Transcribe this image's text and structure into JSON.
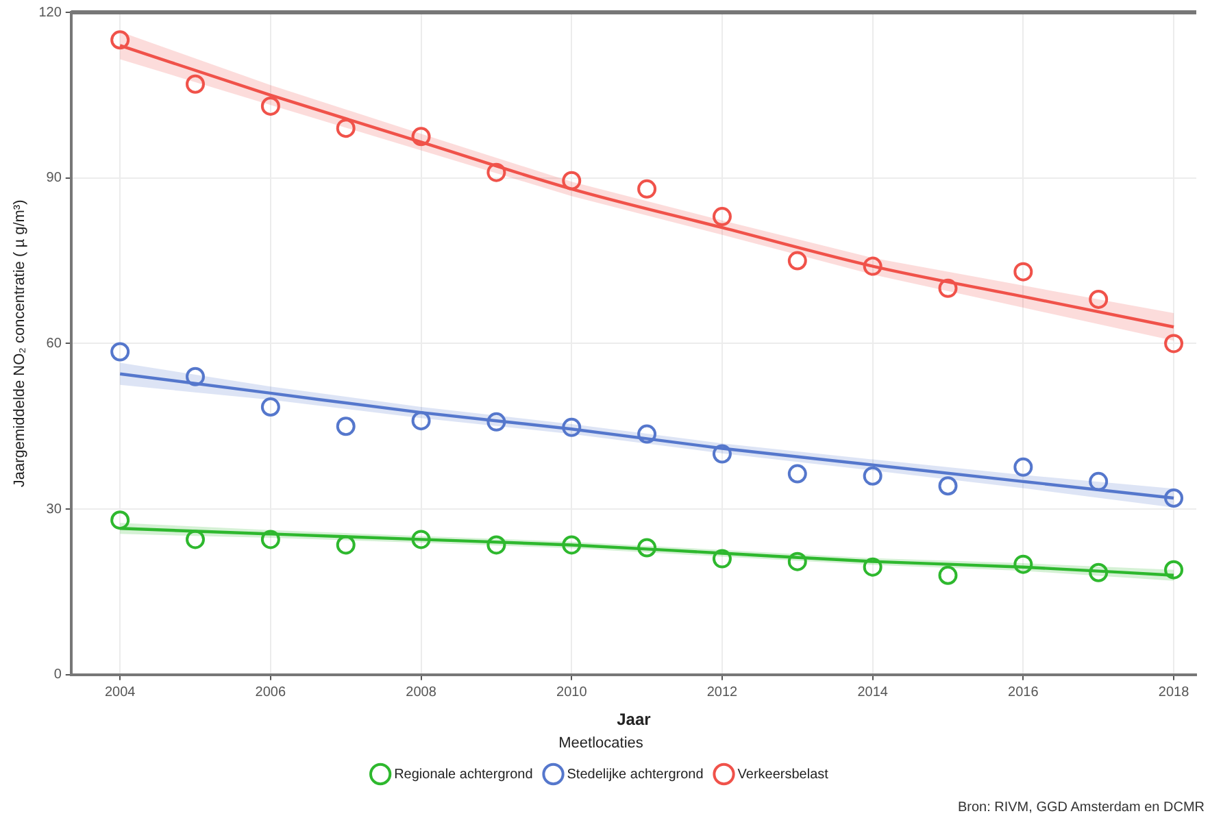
{
  "chart_data": {
    "type": "scatter",
    "xlabel": "Jaar",
    "ylabel": "Jaargemiddelde NO₂ concentratie ( µ g/m³)",
    "legend_title": "Meetlocaties",
    "legend": "bottom",
    "grid": true,
    "marker": "circle",
    "x": [
      2004,
      2005,
      2006,
      2007,
      2008,
      2009,
      2010,
      2011,
      2012,
      2013,
      2014,
      2015,
      2016,
      2017,
      2018
    ],
    "xlim": [
      2003.35,
      2018.3
    ],
    "xticks": [
      2004,
      2006,
      2008,
      2010,
      2012,
      2014,
      2016,
      2018
    ],
    "ylim": [
      0,
      120
    ],
    "yticks": [
      0,
      30,
      60,
      90,
      120
    ],
    "series": [
      {
        "name": "Regionale achtergrond",
        "color": "#2eb82e",
        "values": [
          28,
          24.5,
          24.5,
          23.5,
          24.5,
          23.5,
          23.5,
          23,
          21,
          20.5,
          19.5,
          18,
          20,
          18.5,
          19
        ]
      },
      {
        "name": "Stedelijke achtergrond",
        "color": "#5577cc",
        "values": [
          58.5,
          54,
          48.5,
          45,
          46,
          45.8,
          44.8,
          43.6,
          40,
          36.4,
          36,
          34.2,
          37.6,
          35,
          32
        ]
      },
      {
        "name": "Verkeersbelast",
        "color": "#f0524a",
        "values": [
          115,
          107,
          103,
          99,
          97.5,
          91,
          89.5,
          88,
          83,
          75,
          74,
          70,
          73,
          68,
          60
        ]
      },
      {
        "type": "line",
        "marker": "none",
        "color": "#2eb82e",
        "x": [
          2004,
          2006,
          2008,
          2010,
          2012,
          2014,
          2016,
          2018
        ],
        "values": [
          26.5,
          25.5,
          24.5,
          23.5,
          22,
          20.5,
          19.5,
          18
        ],
        "lower": [
          25.5,
          24.8,
          23.9,
          22.9,
          21.4,
          19.9,
          18.8,
          17
        ],
        "upper": [
          27.5,
          26.2,
          25.1,
          24.1,
          22.6,
          21.1,
          20.2,
          19
        ]
      },
      {
        "type": "line",
        "marker": "none",
        "color": "#5577cc",
        "x": [
          2004,
          2006,
          2008,
          2010,
          2012,
          2014,
          2016,
          2018
        ],
        "values": [
          54.5,
          51,
          47.5,
          44.5,
          41,
          38,
          35,
          32
        ],
        "lower": [
          52.5,
          49.8,
          46.5,
          43.6,
          40.1,
          37,
          33.8,
          30.3
        ],
        "upper": [
          56.5,
          52.2,
          48.5,
          45.4,
          41.9,
          39,
          36.2,
          33.7
        ]
      },
      {
        "type": "line",
        "marker": "none",
        "color": "#f0524a",
        "x": [
          2004,
          2006,
          2008,
          2010,
          2012,
          2014,
          2016,
          2018
        ],
        "values": [
          114,
          105,
          96.5,
          88,
          81,
          74,
          68.5,
          63
        ],
        "lower": [
          111.5,
          103.2,
          95,
          86.7,
          79.7,
          72.5,
          66.5,
          60.5
        ],
        "upper": [
          116.5,
          106.8,
          98,
          89.3,
          82.3,
          75.5,
          70.5,
          65.5
        ]
      }
    ],
    "annotations": [
      "Bron: RIVM, GGD Amsterdam en DCMR"
    ]
  }
}
